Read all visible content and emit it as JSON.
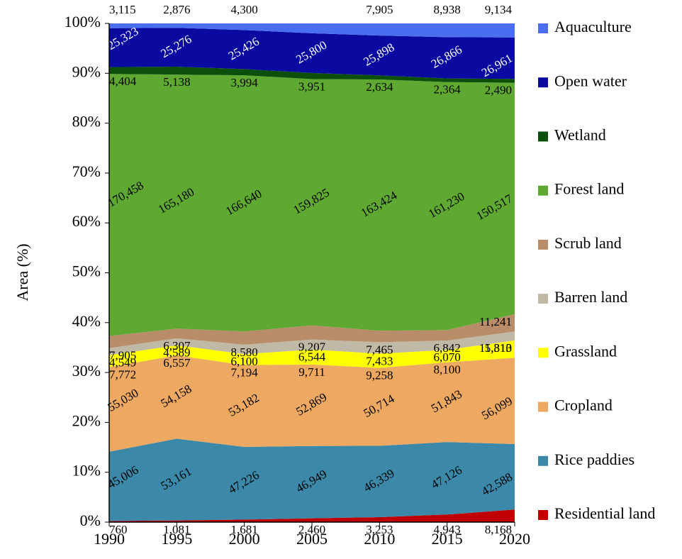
{
  "chart_data": {
    "type": "area",
    "stack": "percent",
    "y_label": "Area (%)",
    "x": [
      1990,
      1995,
      2000,
      2005,
      2010,
      2015,
      2020
    ],
    "xlim": [
      1990,
      2020
    ],
    "xticks": [
      1990,
      1995,
      2000,
      2005,
      2010,
      2015,
      2020
    ],
    "ylim": [
      0,
      100
    ],
    "yticks": [
      {
        "value": 0,
        "label": "0%"
      },
      {
        "value": 10,
        "label": "10%"
      },
      {
        "value": 20,
        "label": "20%"
      },
      {
        "value": 30,
        "label": "30%"
      },
      {
        "value": 40,
        "label": "40%"
      },
      {
        "value": 50,
        "label": "50%"
      },
      {
        "value": 60,
        "label": "60%"
      },
      {
        "value": 70,
        "label": "70%"
      },
      {
        "value": 80,
        "label": "80%"
      },
      {
        "value": 90,
        "label": "90%"
      },
      {
        "value": 100,
        "label": "100%"
      }
    ],
    "grid": false,
    "legend": "right",
    "series": [
      {
        "name": "Residential land",
        "color": "#c00000",
        "values": [
          760,
          1081,
          1681,
          2460,
          3253,
          4943,
          8168
        ],
        "value_labels": [
          "760",
          "1,081",
          "1,681",
          "2,460",
          "3,253",
          "4,943",
          "8,168"
        ]
      },
      {
        "name": "Rice paddies",
        "color": "#3b88a8",
        "values": [
          45006,
          53161,
          47226,
          46949,
          46339,
          47126,
          42588
        ],
        "value_labels": [
          "45,006",
          "53,161",
          "47,226",
          "46,949",
          "46,339",
          "47,126",
          "42,588"
        ]
      },
      {
        "name": "Cropland",
        "color": "#eda862",
        "values": [
          55030,
          54158,
          53182,
          52869,
          50714,
          51843,
          56099
        ],
        "value_labels": [
          "55,030",
          "54,158",
          "53,182",
          "52,869",
          "50,714",
          "51,843",
          "56,099"
        ]
      },
      {
        "name": "Grassland",
        "color": "#ffff00",
        "values": [
          7772,
          6557,
          7194,
          9711,
          9258,
          8100,
          11313
        ],
        "value_labels": [
          "7,772",
          "6,557",
          "7,194",
          "9,711",
          "9,258",
          "8,100",
          "11,313"
        ]
      },
      {
        "name": "Barren land",
        "color": "#c0b9a5",
        "values": [
          4549,
          4589,
          6100,
          6544,
          7433,
          6070,
          5810
        ],
        "value_labels": [
          "4,549",
          "4,589",
          "6,100",
          "6,544",
          "7,433",
          "6,070",
          "5,810"
        ]
      },
      {
        "name": "Scrub land",
        "color": "#b98c6a",
        "values": [
          7905,
          6307,
          8580,
          9207,
          7465,
          6842,
          11241
        ],
        "value_labels": [
          "7,905",
          "6,307",
          "8,580",
          "9,207",
          "7,465",
          "6,842",
          "11,241"
        ]
      },
      {
        "name": "Forest land",
        "color": "#5fa832",
        "values": [
          170458,
          165180,
          166640,
          159825,
          163424,
          161230,
          150517
        ],
        "value_labels": [
          "170,458",
          "165,180",
          "166,640",
          "159,825",
          "163,424",
          "161,230",
          "150,517"
        ]
      },
      {
        "name": "Wetland",
        "color": "#0b4f0b",
        "values": [
          4404,
          5138,
          3994,
          3951,
          2634,
          2364,
          2490
        ],
        "value_labels": [
          "4,404",
          "5,138",
          "3,994",
          "3,951",
          "2,634",
          "2,364",
          "2,490"
        ]
      },
      {
        "name": "Open water",
        "color": "#0a0aa0",
        "values": [
          25323,
          25276,
          25426,
          25800,
          25898,
          26866,
          26961
        ],
        "value_labels": [
          "25,323",
          "25,276",
          "25,426",
          "25,800",
          "25,898",
          "26,866",
          "26,961"
        ]
      },
      {
        "name": "Aquaculture",
        "color": "#4a6ef0",
        "values": [
          3115,
          2876,
          4300,
          6400,
          7905,
          8938,
          9134
        ],
        "value_labels": [
          "3,115",
          "2,876",
          "4,300",
          null,
          "7,905",
          "8,938",
          "9,134"
        ]
      }
    ]
  }
}
